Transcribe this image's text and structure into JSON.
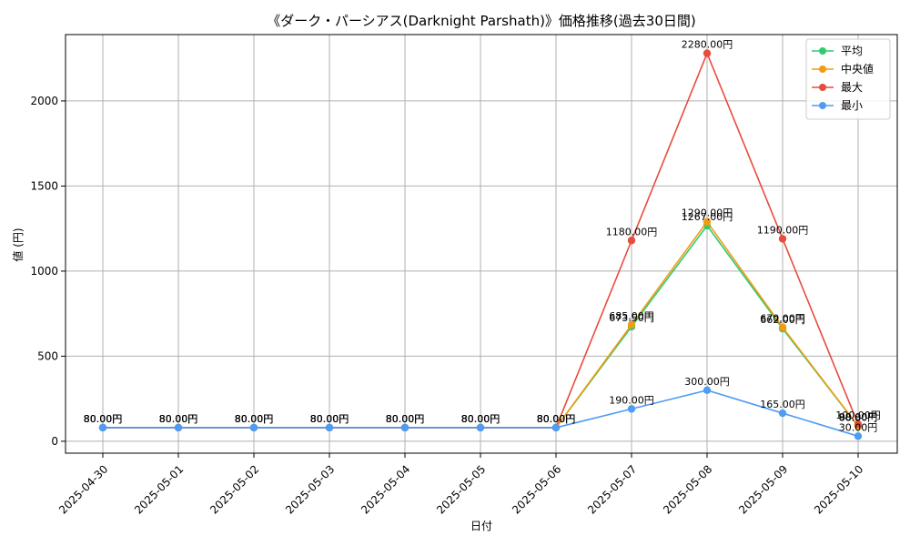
{
  "chart_data": {
    "type": "line",
    "title": "《ダーク・パーシアス(Darknight Parshath)》価格推移(過去30日間)",
    "xlabel": "日付",
    "ylabel": "値 (円)",
    "categories": [
      "2025-04-30",
      "2025-05-01",
      "2025-05-02",
      "2025-05-03",
      "2025-05-04",
      "2025-05-05",
      "2025-05-06",
      "2025-05-07",
      "2025-05-08",
      "2025-05-09",
      "2025-05-10"
    ],
    "ylim": [
      -70,
      2390
    ],
    "yticks": [
      0,
      500,
      1000,
      1500,
      2000
    ],
    "grid": true,
    "legend_position": "top-right",
    "series": [
      {
        "name": "平均",
        "color": "#2ecc71",
        "values": [
          80,
          80,
          80,
          80,
          80,
          80,
          80,
          673.5,
          1267,
          662,
          88.8
        ],
        "labels": [
          "80.00円",
          "80.00円",
          "80.00円",
          "80.00円",
          "80.00円",
          "80.00円",
          "80.00円",
          "673.50円",
          "1267.00円",
          "662.00円",
          "88.80円"
        ]
      },
      {
        "name": "中央値",
        "color": "#f39c12",
        "values": [
          80,
          80,
          80,
          80,
          80,
          80,
          80,
          685,
          1290,
          670,
          90
        ],
        "labels": [
          "80.00円",
          "80.00円",
          "80.00円",
          "80.00円",
          "80.00円",
          "80.00円",
          "80.00円",
          "685.00円",
          "1290.00円",
          "670.00円",
          "90.00円"
        ]
      },
      {
        "name": "最大",
        "color": "#e74c3c",
        "values": [
          80,
          80,
          80,
          80,
          80,
          80,
          80,
          1180,
          2280,
          1190,
          100
        ],
        "labels": [
          "80.00円",
          "80.00円",
          "80.00円",
          "80.00円",
          "80.00円",
          "80.00円",
          "80.00円",
          "1180.00円",
          "2280.00円",
          "1190.00円",
          "100.00円"
        ]
      },
      {
        "name": "最小",
        "color": "#4e9cf5",
        "values": [
          80,
          80,
          80,
          80,
          80,
          80,
          80,
          190,
          300,
          165,
          30
        ],
        "labels": [
          "80.00円",
          "80.00円",
          "80.00円",
          "80.00円",
          "80.00円",
          "80.00円",
          "80.00円",
          "190.00円",
          "300.00円",
          "165.00円",
          "30.00円"
        ]
      }
    ]
  }
}
